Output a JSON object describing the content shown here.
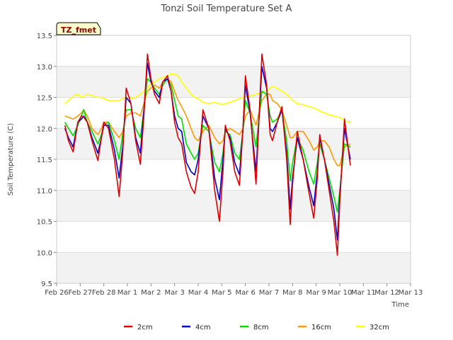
{
  "chart_data": {
    "type": "line",
    "title": "Tonzi Soil Temperature Set A",
    "xlabel": "Time",
    "ylabel": "Soil Temperature (C)",
    "site_label": "TZ_fmet",
    "ylim": [
      9.5,
      13.5
    ],
    "yticks": [
      9.5,
      10.0,
      10.5,
      11.0,
      11.5,
      12.0,
      12.5,
      13.0,
      13.5
    ],
    "ytick_labels": [
      "9.5",
      "10.0",
      "10.5",
      "11.0",
      "11.5",
      "12.0",
      "12.5",
      "13.0",
      "13.5"
    ],
    "xlim": [
      0,
      15
    ],
    "xticks": [
      0,
      1,
      2,
      3,
      4,
      5,
      6,
      7,
      8,
      9,
      10,
      11,
      12,
      13,
      14,
      15
    ],
    "xtick_labels": [
      "Feb 26",
      "Feb 27",
      "Feb 28",
      "Mar 1",
      "Mar 2",
      "Mar 3",
      "Mar 4",
      "Mar 5",
      "Mar 6",
      "Mar 7",
      "Mar 8",
      "Mar 9",
      "Mar 10",
      "Mar 11",
      "Mar 12",
      "Mar 13"
    ],
    "grid": "horizontal bands",
    "legend_position": "bottom",
    "series": [
      {
        "name": "2cm",
        "color": "#dd0000",
        "x": [
          0.35,
          0.5,
          0.7,
          0.9,
          1.05,
          1.15,
          1.3,
          1.5,
          1.75,
          1.9,
          2.0,
          2.2,
          2.45,
          2.65,
          2.8,
          2.95,
          3.15,
          3.35,
          3.55,
          3.7,
          3.85,
          4.0,
          4.15,
          4.35,
          4.5,
          4.7,
          4.85,
          5.0,
          5.15,
          5.3,
          5.5,
          5.7,
          5.85,
          6.0,
          6.2,
          6.45,
          6.7,
          6.9,
          7.05,
          7.15,
          7.35,
          7.55,
          7.75,
          7.9,
          8.0,
          8.2,
          8.45,
          8.7,
          8.9,
          9.05,
          9.15,
          9.35,
          9.55,
          9.75,
          9.9,
          10.0,
          10.2,
          10.45,
          10.7,
          10.9,
          11.05,
          11.15,
          11.35,
          11.55,
          11.75,
          11.9,
          12.0,
          12.2,
          12.45,
          12.7,
          12.9,
          13.05,
          13.15,
          13.35,
          13.55,
          13.75,
          13.9,
          14.0,
          14.2,
          14.45
        ],
        "y": [
          12.05,
          11.8,
          11.62,
          12.1,
          12.2,
          12.18,
          12.1,
          11.8,
          11.48,
          11.85,
          12.1,
          12.0,
          11.5,
          10.9,
          11.6,
          12.65,
          12.4,
          11.8,
          11.42,
          12.2,
          13.2,
          12.8,
          12.55,
          12.4,
          12.75,
          12.85,
          12.6,
          12.1,
          11.85,
          11.75,
          11.3,
          11.05,
          10.95,
          11.3,
          12.3,
          12.0,
          11.0,
          10.5,
          11.3,
          12.05,
          11.8,
          11.3,
          11.08,
          12.0,
          12.85,
          12.3,
          11.1,
          13.2,
          12.7,
          11.9,
          11.8,
          12.1,
          12.35,
          11.5,
          10.45,
          11.1,
          11.95,
          11.5,
          10.95,
          10.55,
          11.2,
          11.9,
          11.5,
          11.0,
          10.5,
          9.95,
          10.8,
          12.15,
          11.4,
          null,
          null,
          null,
          null,
          null,
          null,
          null,
          null,
          null,
          null,
          null
        ]
      },
      {
        "name": "4cm",
        "color": "#0000cc",
        "x": [
          0.35,
          0.5,
          0.7,
          0.9,
          1.05,
          1.15,
          1.3,
          1.5,
          1.75,
          1.9,
          2.0,
          2.2,
          2.45,
          2.65,
          2.8,
          2.95,
          3.15,
          3.35,
          3.55,
          3.7,
          3.85,
          4.0,
          4.15,
          4.35,
          4.5,
          4.7,
          4.85,
          5.0,
          5.15,
          5.3,
          5.5,
          5.7,
          5.85,
          6.0,
          6.2,
          6.45,
          6.7,
          6.9,
          7.05,
          7.15,
          7.35,
          7.55,
          7.75,
          7.9,
          8.0,
          8.2,
          8.45,
          8.7,
          8.9,
          9.05,
          9.15,
          9.35,
          9.55,
          9.75,
          9.9,
          10.0,
          10.2,
          10.45,
          10.7,
          10.9,
          11.05,
          11.15,
          11.35,
          11.55,
          11.75,
          11.9,
          12.0,
          12.2,
          12.45,
          12.7,
          12.9,
          13.05,
          13.15,
          13.35,
          13.55,
          13.75,
          13.9,
          14.0,
          14.2,
          14.45
        ],
        "y": [
          12.0,
          11.85,
          11.7,
          12.1,
          12.15,
          12.2,
          12.1,
          11.85,
          11.6,
          11.85,
          12.05,
          12.05,
          11.65,
          11.2,
          11.7,
          12.5,
          12.4,
          11.85,
          11.6,
          12.3,
          13.05,
          12.75,
          12.6,
          12.5,
          12.75,
          12.8,
          12.6,
          12.2,
          12.0,
          11.95,
          11.45,
          11.3,
          11.25,
          11.5,
          12.2,
          12.0,
          11.2,
          10.85,
          11.5,
          12.0,
          11.85,
          11.45,
          11.25,
          12.0,
          12.7,
          12.25,
          11.3,
          13.0,
          12.65,
          12.0,
          11.95,
          12.1,
          12.3,
          11.6,
          10.7,
          11.2,
          11.85,
          11.5,
          11.05,
          10.75,
          11.3,
          11.85,
          11.5,
          11.1,
          10.7,
          10.2,
          10.9,
          12.0,
          11.5,
          null,
          null,
          null,
          null,
          null,
          null,
          null,
          null,
          null,
          null,
          null
        ]
      },
      {
        "name": "8cm",
        "color": "#00dd00",
        "x": [
          0.35,
          0.5,
          0.7,
          0.9,
          1.05,
          1.15,
          1.3,
          1.5,
          1.75,
          1.9,
          2.0,
          2.2,
          2.45,
          2.65,
          2.8,
          2.95,
          3.15,
          3.35,
          3.55,
          3.7,
          3.85,
          4.0,
          4.15,
          4.35,
          4.5,
          4.7,
          4.85,
          5.0,
          5.15,
          5.3,
          5.5,
          5.7,
          5.85,
          6.0,
          6.2,
          6.45,
          6.7,
          6.9,
          7.05,
          7.15,
          7.35,
          7.55,
          7.75,
          7.9,
          8.0,
          8.2,
          8.45,
          8.7,
          8.9,
          9.05,
          9.15,
          9.35,
          9.55,
          9.75,
          9.9,
          10.0,
          10.2,
          10.45,
          10.7,
          10.9,
          11.05,
          11.15,
          11.35,
          11.55,
          11.75,
          11.9,
          12.0,
          12.2,
          12.45,
          12.7,
          12.9,
          13.05,
          13.15,
          13.35,
          13.55,
          13.75,
          13.9,
          14.0,
          14.2,
          14.45
        ],
        "y": [
          12.1,
          12.0,
          11.88,
          12.05,
          12.2,
          12.3,
          12.1,
          11.95,
          11.75,
          11.9,
          12.05,
          12.1,
          11.8,
          11.5,
          11.9,
          12.3,
          12.3,
          12.0,
          11.85,
          12.3,
          12.8,
          12.75,
          12.65,
          12.55,
          12.7,
          12.8,
          12.7,
          12.45,
          12.2,
          12.15,
          11.75,
          11.6,
          11.5,
          11.6,
          12.05,
          11.95,
          11.45,
          11.3,
          11.6,
          11.95,
          11.9,
          11.6,
          11.5,
          11.95,
          12.45,
          12.25,
          11.7,
          12.6,
          12.55,
          12.2,
          12.1,
          12.15,
          12.3,
          11.8,
          11.15,
          11.45,
          11.85,
          11.65,
          11.3,
          11.1,
          11.45,
          11.75,
          11.5,
          11.2,
          10.9,
          10.65,
          11.0,
          11.75,
          11.7,
          null,
          null,
          null,
          null,
          null,
          null,
          null,
          null,
          null,
          null,
          null
        ]
      },
      {
        "name": "16cm",
        "color": "#ff9900",
        "x": [
          0.35,
          0.5,
          0.7,
          0.9,
          1.05,
          1.15,
          1.3,
          1.5,
          1.75,
          1.9,
          2.0,
          2.2,
          2.45,
          2.65,
          2.8,
          2.95,
          3.15,
          3.35,
          3.55,
          3.7,
          3.85,
          4.0,
          4.15,
          4.35,
          4.5,
          4.7,
          4.85,
          5.0,
          5.15,
          5.3,
          5.5,
          5.7,
          5.85,
          6.0,
          6.2,
          6.45,
          6.7,
          6.9,
          7.05,
          7.15,
          7.35,
          7.55,
          7.75,
          7.9,
          8.0,
          8.2,
          8.45,
          8.7,
          8.9,
          9.05,
          9.15,
          9.35,
          9.55,
          9.75,
          9.9,
          10.0,
          10.2,
          10.45,
          10.7,
          10.9,
          11.05,
          11.15,
          11.35,
          11.55,
          11.75,
          11.9,
          12.0,
          12.2,
          12.45,
          12.7,
          12.9,
          13.05,
          13.15,
          13.35,
          13.55,
          13.75,
          13.9,
          14.0,
          14.2,
          14.45
        ],
        "y": [
          12.2,
          12.18,
          12.15,
          12.2,
          12.25,
          12.3,
          12.2,
          12.0,
          11.9,
          12.0,
          12.1,
          12.1,
          11.95,
          11.85,
          11.95,
          12.2,
          12.25,
          12.25,
          12.2,
          12.4,
          12.6,
          12.65,
          12.7,
          12.65,
          12.75,
          12.8,
          12.75,
          12.6,
          12.45,
          12.35,
          12.2,
          12.0,
          11.85,
          11.8,
          11.95,
          12.05,
          11.85,
          11.75,
          11.8,
          11.95,
          12.0,
          11.95,
          11.9,
          12.0,
          12.2,
          12.3,
          12.05,
          12.45,
          12.55,
          12.55,
          12.45,
          12.4,
          12.3,
          12.05,
          11.85,
          11.85,
          11.95,
          11.95,
          11.8,
          11.65,
          11.7,
          11.8,
          11.8,
          11.7,
          11.5,
          11.4,
          11.4,
          11.7,
          11.75,
          null,
          null,
          null,
          null,
          null,
          null,
          null,
          null,
          null,
          null,
          null
        ]
      },
      {
        "name": "32cm",
        "color": "#ffff00",
        "x": [
          0.35,
          0.5,
          0.7,
          0.9,
          1.05,
          1.15,
          1.3,
          1.5,
          1.75,
          1.9,
          2.0,
          2.2,
          2.45,
          2.65,
          2.8,
          2.95,
          3.15,
          3.35,
          3.55,
          3.7,
          3.85,
          4.0,
          4.15,
          4.35,
          4.5,
          4.7,
          4.85,
          5.0,
          5.15,
          5.3,
          5.5,
          5.7,
          5.85,
          6.0,
          6.2,
          6.45,
          6.7,
          6.9,
          7.05,
          7.15,
          7.35,
          7.55,
          7.75,
          7.9,
          8.0,
          8.2,
          8.45,
          8.7,
          8.9,
          9.05,
          9.15,
          9.35,
          9.55,
          9.75,
          9.9,
          10.0,
          10.2,
          10.45,
          10.7,
          10.9,
          11.05,
          11.15,
          11.35,
          11.55,
          11.75,
          11.9,
          12.0,
          12.2,
          12.45,
          12.7,
          12.9,
          13.05,
          13.15,
          13.35,
          13.55,
          13.75,
          13.9,
          14.0,
          14.2,
          14.45
        ],
        "y": [
          12.4,
          12.45,
          12.52,
          12.55,
          12.5,
          12.52,
          12.55,
          12.53,
          12.5,
          12.5,
          12.48,
          12.45,
          12.45,
          12.45,
          12.48,
          12.48,
          12.48,
          12.5,
          12.55,
          12.6,
          12.65,
          12.72,
          12.75,
          12.8,
          12.82,
          12.85,
          12.88,
          12.87,
          12.85,
          12.75,
          12.65,
          12.55,
          12.5,
          12.48,
          12.42,
          12.4,
          12.42,
          12.4,
          12.38,
          12.4,
          12.42,
          12.45,
          12.48,
          12.5,
          12.52,
          12.52,
          12.55,
          12.58,
          12.6,
          12.65,
          12.68,
          12.65,
          12.6,
          12.55,
          12.5,
          12.45,
          12.4,
          12.38,
          12.35,
          12.33,
          12.3,
          12.28,
          12.25,
          12.22,
          12.2,
          12.18,
          12.18,
          12.12,
          12.1,
          null,
          null,
          null,
          null,
          null,
          null,
          null,
          null,
          null,
          null,
          null
        ]
      }
    ]
  }
}
